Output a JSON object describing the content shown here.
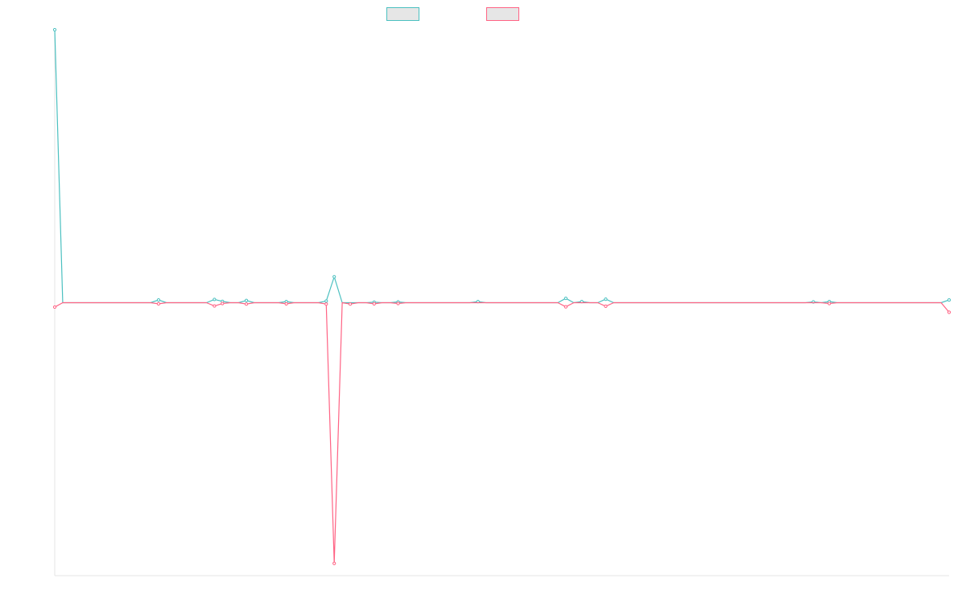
{
  "chart_data": {
    "type": "line",
    "title": "",
    "xlabel": "",
    "ylabel": "",
    "grid": false,
    "legend_position": "top-center",
    "x_count": 113,
    "ylim": [
      -100,
      100
    ],
    "series": [
      {
        "name": "",
        "color": "#4bc0c0",
        "fill": "#e6e6e6",
        "values": {
          "base": 0,
          "points": {
            "0": 100,
            "13": 1,
            "20": 1.2,
            "21": 0.5,
            "24": 0.8,
            "29": 0.4,
            "34": 0.6,
            "35": 9.5,
            "40": 0.2,
            "43": 0.3,
            "53": 0.4,
            "64": 1.6,
            "66": 0.4,
            "69": 1.3,
            "95": 0.3,
            "97": 0.4,
            "112": 1
          }
        }
      },
      {
        "name": "",
        "color": "#ff6384",
        "fill": "#e6e6e6",
        "values": {
          "base": 0,
          "points": {
            "0": -1.6,
            "13": -0.4,
            "20": -1.2,
            "21": -0.3,
            "24": -0.5,
            "29": -0.4,
            "34": -0.5,
            "35": -95.5,
            "37": -0.5,
            "40": -0.4,
            "43": -0.3,
            "64": -1.5,
            "69": -1.3,
            "97": -0.3,
            "112": -3.5
          }
        }
      }
    ]
  }
}
